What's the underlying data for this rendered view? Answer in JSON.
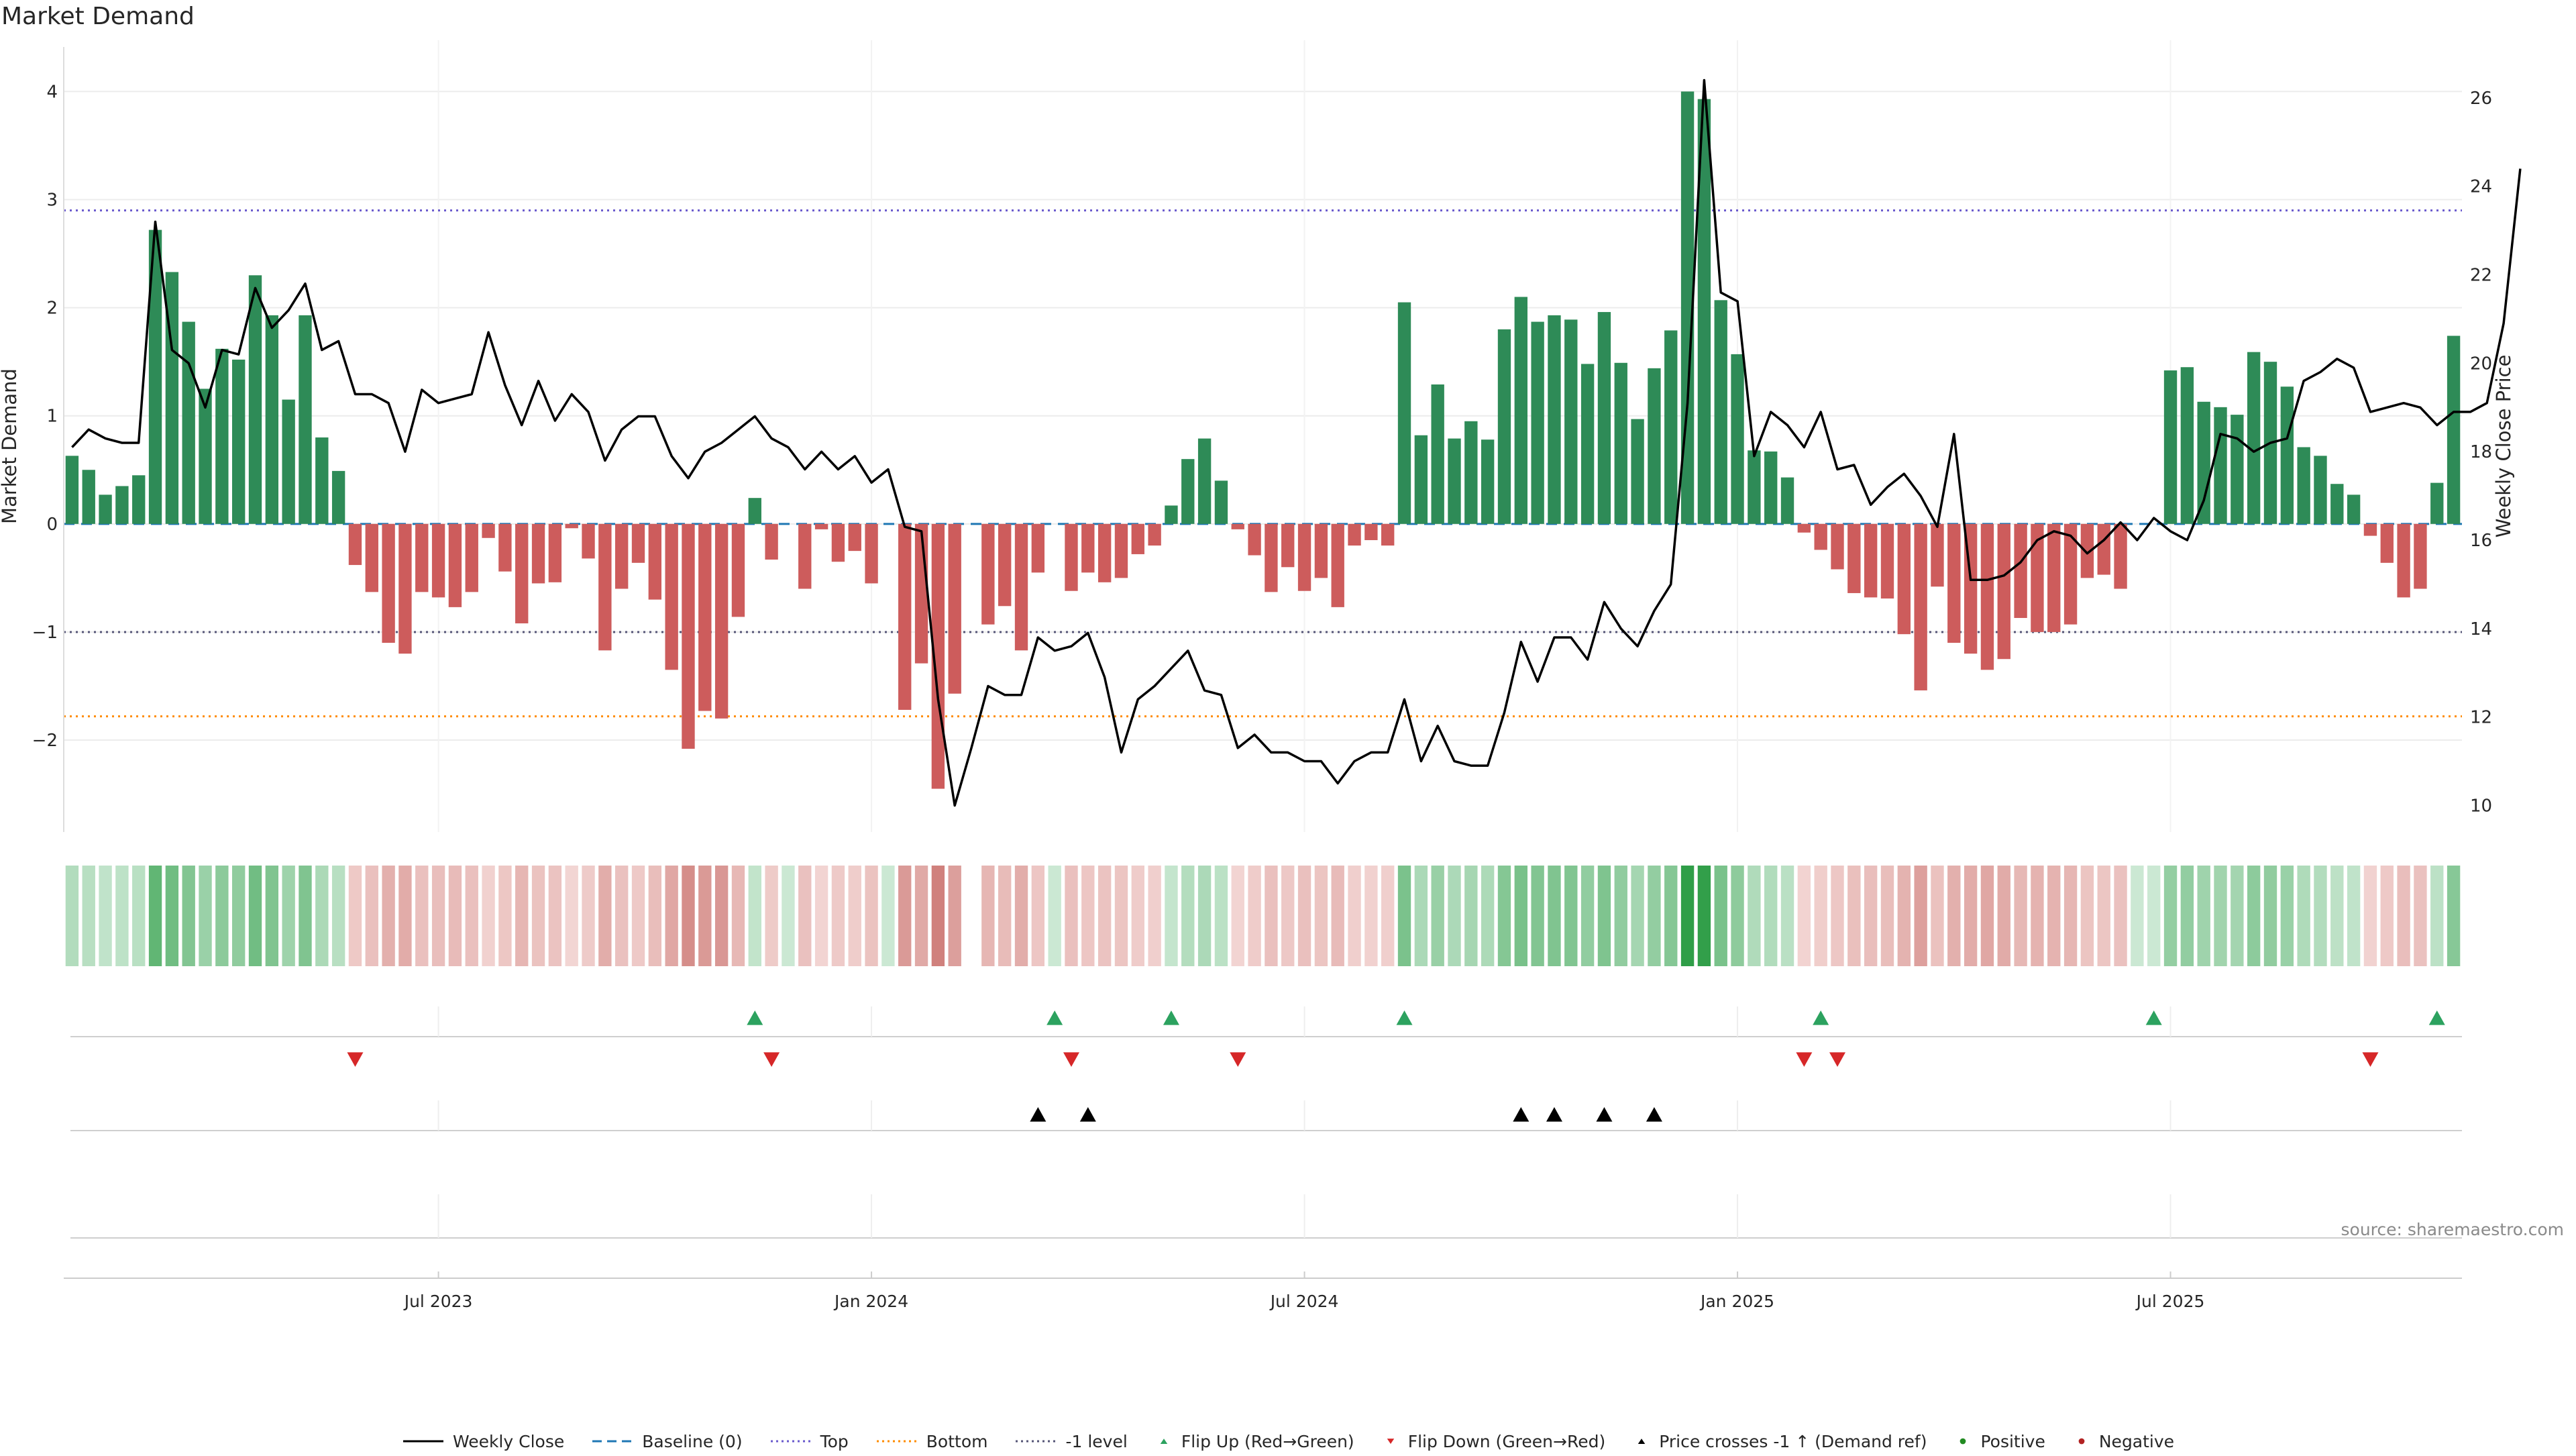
{
  "title": "Market Demand",
  "source": "source: sharemaestro.com",
  "colors": {
    "positive_bar": "#2e8b57",
    "negative_bar": "#cd5c5c",
    "price_line": "#000000",
    "baseline": "#1f77b4",
    "top_line": "#6a5acd",
    "bottom_line": "#ff8c00",
    "minus_one_line": "#555577",
    "flip_up": "#2ca25f",
    "flip_down": "#d62728",
    "cross_marker": "#000000",
    "positive_dot": "#228b22",
    "negative_dot": "#b22222"
  },
  "legend": [
    {
      "label": "Weekly Close",
      "icon": "solid-line"
    },
    {
      "label": "Baseline (0)",
      "icon": "dashed-line"
    },
    {
      "label": "Top",
      "icon": "dotted-line"
    },
    {
      "label": "Bottom",
      "icon": "dotted-line"
    },
    {
      "label": "-1 level",
      "icon": "dotted-line"
    },
    {
      "label": "Flip Up (Red→Green)",
      "icon": "triangle-up"
    },
    {
      "label": "Flip Down (Green→Red)",
      "icon": "triangle-down"
    },
    {
      "label": "Price crosses -1 ↑ (Demand ref)",
      "icon": "triangle-up"
    },
    {
      "label": "Positive",
      "icon": "dot"
    },
    {
      "label": "Negative",
      "icon": "dot"
    }
  ],
  "chart_data": {
    "type": "bar",
    "title": "Market Demand",
    "ylabel": "Market Demand",
    "y2label": "Weekly Close Price",
    "ylim": [
      -2.85,
      4.35
    ],
    "y2lim": [
      9.4,
      27.0
    ],
    "yticks": [
      -2,
      -1,
      0,
      1,
      2,
      3,
      4
    ],
    "y2ticks": [
      10,
      12,
      14,
      16,
      18,
      20,
      22,
      24,
      26
    ],
    "xlim": [
      0,
      144
    ],
    "x_ticks": [
      {
        "label": "Jul 2023",
        "index": 22
      },
      {
        "label": "Jan 2024",
        "index": 48
      },
      {
        "label": "Jul 2024",
        "index": 74
      },
      {
        "label": "Jan 2025",
        "index": 100
      },
      {
        "label": "Jul 2025",
        "index": 126
      }
    ],
    "reference_lines": {
      "baseline": 0,
      "top": 2.9,
      "bottom": -1.78,
      "minus_one": -1
    },
    "demand": [
      0.63,
      0.5,
      0.27,
      0.35,
      0.45,
      2.72,
      2.33,
      1.87,
      1.25,
      1.62,
      1.52,
      2.3,
      1.93,
      1.15,
      1.93,
      0.8,
      0.49,
      -0.38,
      -0.63,
      -1.1,
      -1.2,
      -0.63,
      -0.68,
      -0.77,
      -0.63,
      -0.13,
      -0.44,
      -0.92,
      -0.55,
      -0.54,
      -0.04,
      -0.32,
      -1.17,
      -0.6,
      -0.36,
      -0.7,
      -1.35,
      -2.08,
      -1.73,
      -1.8,
      -0.86,
      0.24,
      -0.33,
      0,
      -0.6,
      -0.05,
      -0.35,
      -0.25,
      -0.55,
      0,
      -1.72,
      -1.29,
      -2.45,
      -1.57,
      0,
      -0.93,
      -0.76,
      -1.17,
      -0.45,
      0,
      -0.62,
      -0.45,
      -0.54,
      -0.5,
      -0.28,
      -0.2,
      0.17,
      0.6,
      0.79,
      0.4,
      -0.05,
      -0.29,
      -0.63,
      -0.4,
      -0.62,
      -0.5,
      -0.77,
      -0.2,
      -0.15,
      -0.2,
      2.05,
      0.82,
      1.29,
      0.79,
      0.95,
      0.78,
      1.8,
      2.1,
      1.87,
      1.93,
      1.89,
      1.48,
      1.96,
      1.49,
      0.97,
      1.44,
      1.79,
      4.0,
      3.93,
      2.07,
      1.57,
      0.68,
      0.67,
      0.43,
      -0.08,
      -0.24,
      -0.42,
      -0.64,
      -0.68,
      -0.69,
      -1.02,
      -1.54,
      -0.58,
      -1.1,
      -1.2,
      -1.35,
      -1.25,
      -0.87,
      -1.0,
      -1.0,
      -0.93,
      -0.5,
      -0.47,
      -0.6,
      0,
      0,
      1.42,
      1.45,
      1.13,
      1.08,
      1.01,
      1.59,
      1.5,
      1.27,
      0.71,
      0.63,
      0.37,
      0.27,
      -0.11,
      -0.36,
      -0.68,
      -0.6,
      0.38,
      1.74
    ],
    "weekly_close": [
      18.1,
      18.5,
      18.3,
      18.2,
      18.2,
      23.2,
      20.3,
      20.0,
      19.0,
      20.3,
      20.2,
      21.7,
      20.8,
      21.2,
      21.8,
      20.3,
      20.5,
      19.3,
      19.3,
      19.1,
      18.0,
      19.4,
      19.1,
      19.2,
      19.3,
      20.7,
      19.5,
      18.6,
      19.6,
      18.7,
      19.3,
      18.9,
      17.8,
      18.5,
      18.8,
      18.8,
      17.9,
      17.4,
      18.0,
      18.2,
      18.5,
      18.8,
      18.3,
      18.1,
      17.6,
      18.0,
      17.6,
      17.9,
      17.3,
      17.6,
      16.3,
      16.2,
      12.4,
      10.0,
      11.3,
      12.7,
      12.5,
      12.5,
      13.8,
      13.5,
      13.6,
      13.9,
      12.9,
      11.2,
      12.4,
      12.7,
      13.1,
      13.5,
      12.6,
      12.5,
      11.3,
      11.6,
      11.2,
      11.2,
      11.0,
      11.0,
      10.5,
      11.0,
      11.2,
      11.2,
      12.4,
      11.0,
      11.8,
      11.0,
      10.9,
      10.9,
      12.1,
      13.7,
      12.8,
      13.8,
      13.8,
      13.3,
      14.6,
      14.0,
      13.6,
      14.4,
      15.0,
      19.1,
      26.4,
      21.6,
      21.4,
      17.9,
      18.9,
      18.6,
      18.1,
      18.9,
      17.6,
      17.7,
      16.8,
      17.2,
      17.5,
      17.0,
      16.3,
      18.4,
      15.1,
      15.1,
      15.2,
      15.5,
      16.0,
      16.2,
      16.1,
      15.7,
      16.0,
      16.4,
      16.0,
      16.5,
      16.2,
      16.0,
      16.9,
      18.4,
      18.3,
      18.0,
      18.2,
      18.3,
      19.6,
      19.8,
      20.1,
      19.9,
      18.9,
      19.0,
      19.1,
      19.0,
      18.6,
      18.9,
      18.9,
      19.1,
      20.9,
      24.4
    ],
    "strip_scale_min": -2.5,
    "strip_scale_max": 4.0,
    "strip_gap_index": 54,
    "flip_up_indices": [
      41,
      59,
      66,
      80,
      105,
      125,
      142
    ],
    "flip_down_indices": [
      17,
      42,
      60,
      70,
      104,
      106,
      138
    ],
    "price_cross_indices": [
      58,
      61,
      87,
      89,
      92,
      95
    ]
  }
}
